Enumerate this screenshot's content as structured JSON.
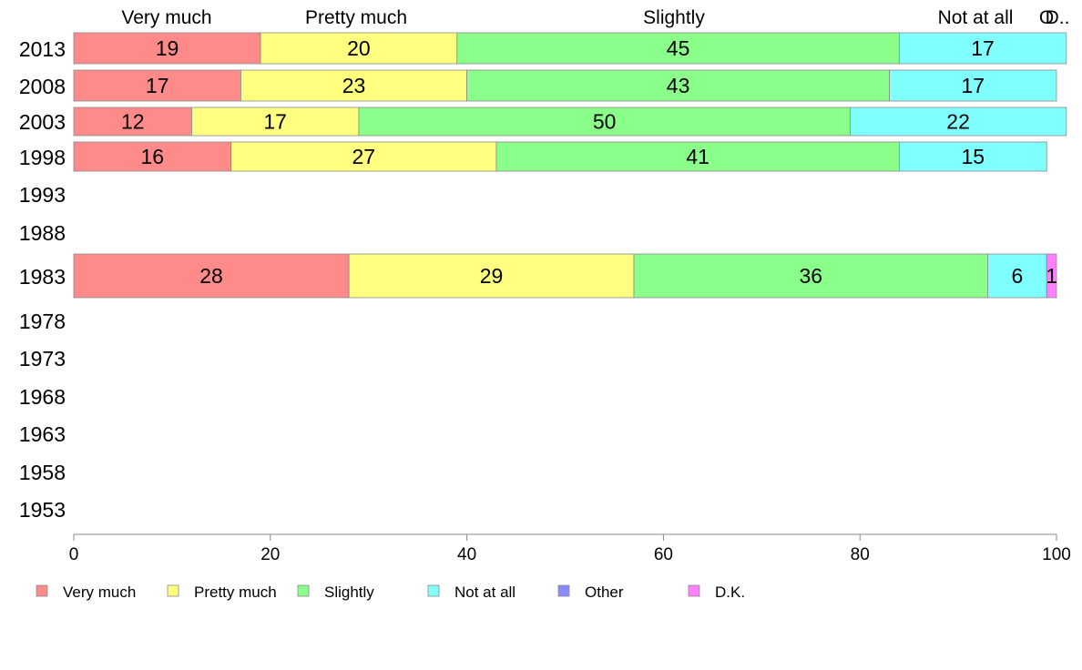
{
  "chart_data": {
    "type": "bar",
    "orientation": "horizontal",
    "stacked": true,
    "top_labels": [
      "Very much",
      "Pretty much",
      "Slightly",
      "Not at all",
      "Other",
      "D.K."
    ],
    "years": [
      "2013",
      "2008",
      "2003",
      "1998",
      "1993",
      "1988",
      "1983",
      "1978",
      "1973",
      "1968",
      "1963",
      "1958",
      "1953"
    ],
    "categories": [
      "Very much",
      "Pretty much",
      "Slightly",
      "Not at all",
      "Other",
      "D.K."
    ],
    "colors": [
      "#ff8a8a",
      "#ffff80",
      "#8aff8a",
      "#80ffff",
      "#8a8aff",
      "#ff80ff"
    ],
    "rows": [
      {
        "year": "2013",
        "values": [
          19,
          20,
          45,
          17,
          0,
          0
        ],
        "labels": [
          "19",
          "20",
          "45",
          "17",
          "",
          ""
        ]
      },
      {
        "year": "2008",
        "values": [
          17,
          23,
          43,
          17,
          0,
          0
        ],
        "labels": [
          "17",
          "23",
          "43",
          "17",
          "",
          ""
        ]
      },
      {
        "year": "2003",
        "values": [
          12,
          17,
          50,
          22,
          0,
          0
        ],
        "labels": [
          "12",
          "17",
          "50",
          "22",
          "",
          ""
        ]
      },
      {
        "year": "1998",
        "values": [
          16,
          27,
          41,
          15,
          0,
          0
        ],
        "labels": [
          "16",
          "27",
          "41",
          "15",
          "",
          ""
        ]
      },
      {
        "year": "1983",
        "values": [
          28,
          29,
          36,
          6,
          0,
          1
        ],
        "labels": [
          "28",
          "29",
          "36",
          "6",
          "",
          "1"
        ]
      }
    ],
    "xlim": [
      0,
      100
    ],
    "xticks": [
      "0",
      "20",
      "40",
      "60",
      "80",
      "100"
    ],
    "legend": [
      "Very much",
      "Pretty much",
      "Slightly",
      "Not at all",
      "Other",
      "D.K."
    ],
    "legend_position": "bottom",
    "grid": false
  }
}
